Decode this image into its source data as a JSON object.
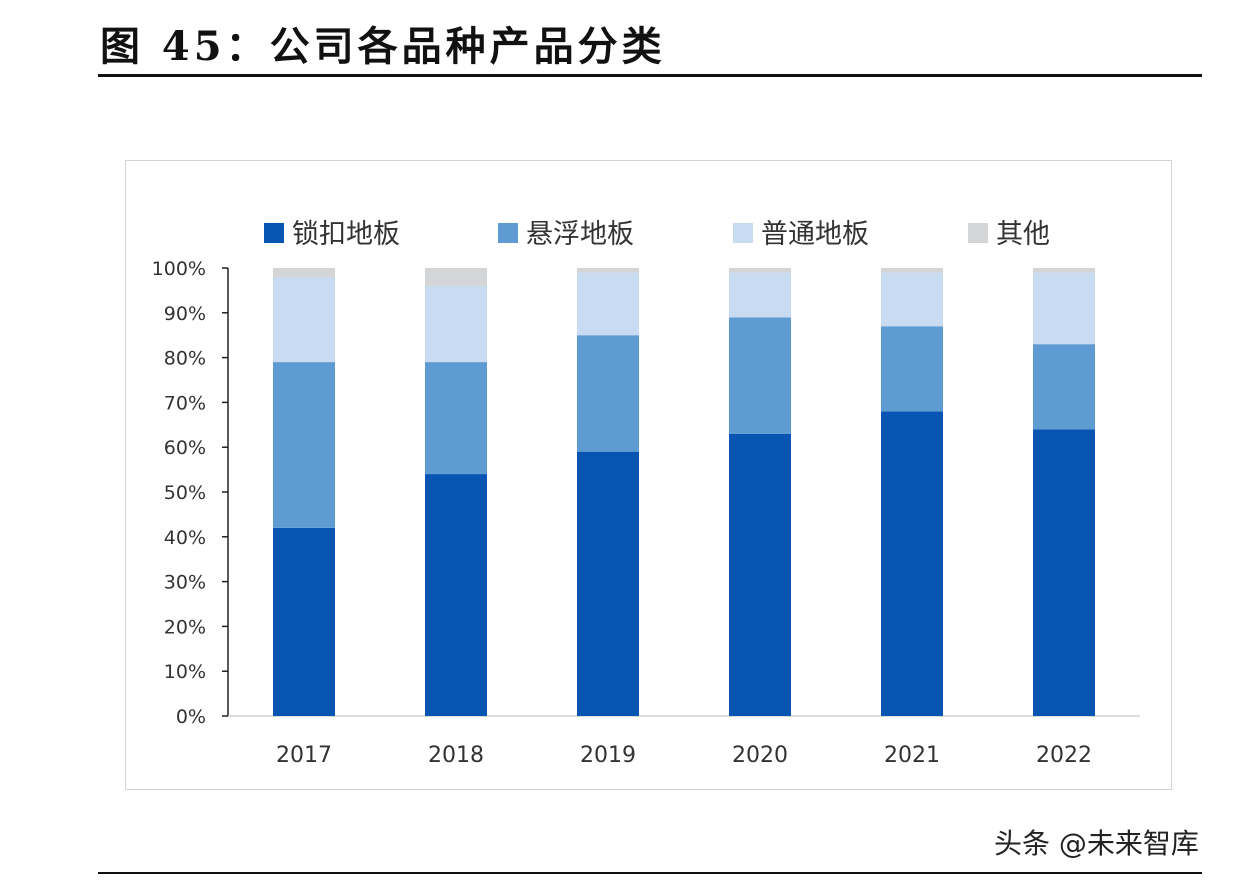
{
  "title": "图 45：公司各品种产品分类",
  "source": "头条 @未来智库",
  "chart_data": {
    "type": "bar",
    "stacked": true,
    "categories": [
      "2017",
      "2018",
      "2019",
      "2020",
      "2021",
      "2022"
    ],
    "series": [
      {
        "name": "锁扣地板",
        "color": "#0655b3",
        "values": [
          42,
          54,
          59,
          63,
          68,
          64
        ]
      },
      {
        "name": "悬浮地板",
        "color": "#5e9bd3",
        "values": [
          37,
          25,
          26,
          26,
          19,
          19
        ]
      },
      {
        "name": "普通地板",
        "color": "#c9dbf0",
        "values": [
          19,
          17,
          14,
          10,
          12,
          16
        ]
      },
      {
        "name": "其他",
        "color": "#d4d5d7",
        "values": [
          2,
          4,
          1,
          1,
          1,
          1
        ]
      }
    ],
    "yticks": [
      "0%",
      "10%",
      "20%",
      "30%",
      "40%",
      "50%",
      "60%",
      "70%",
      "80%",
      "90%",
      "100%"
    ],
    "ylim": [
      0,
      100
    ],
    "grid": false,
    "legend": "top"
  }
}
